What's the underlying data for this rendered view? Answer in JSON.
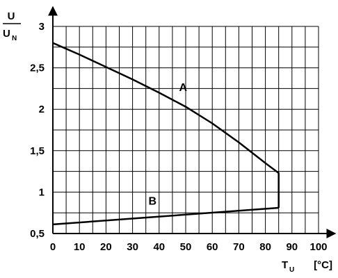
{
  "chart_data": {
    "type": "line",
    "xlim": [
      0,
      100
    ],
    "ylim": [
      0.5,
      3
    ],
    "grid": true,
    "x_grid_step": 5,
    "y_grid_step": 0.25,
    "x_ticks": [
      0,
      10,
      20,
      30,
      40,
      50,
      60,
      70,
      80,
      90,
      100
    ],
    "x_tick_labels": [
      "0",
      "10",
      "20",
      "30",
      "40",
      "50",
      "60",
      "70",
      "80",
      "90",
      "100"
    ],
    "y_ticks": [
      0.5,
      1,
      1.5,
      2,
      2.5,
      3
    ],
    "y_tick_labels": [
      "0,5",
      "1",
      "1,5",
      "2",
      "2,5",
      "3"
    ],
    "xlabel": {
      "main": "T",
      "sub": "U",
      "unit": "[°C]"
    },
    "ylabel": {
      "numerator": "U",
      "denominator": "U",
      "denominator_sub": "N"
    },
    "series": [
      {
        "name": "A",
        "label_at": {
          "x": 47.5,
          "y": 2.22
        },
        "x": [
          0,
          10,
          20,
          30,
          40,
          50,
          60,
          70,
          80,
          85,
          85
        ],
        "y": [
          2.8,
          2.66,
          2.51,
          2.36,
          2.2,
          2.03,
          1.83,
          1.6,
          1.35,
          1.23,
          0.81
        ]
      },
      {
        "name": "B",
        "label_at": {
          "x": 36,
          "y": 0.85
        },
        "x": [
          0,
          85
        ],
        "y": [
          0.61,
          0.81
        ]
      }
    ]
  }
}
